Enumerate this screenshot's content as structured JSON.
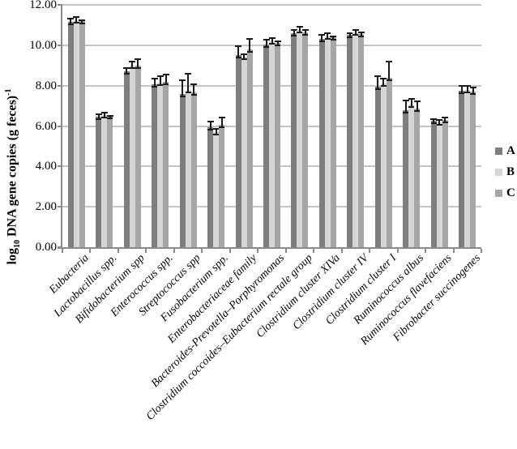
{
  "figure": {
    "background": "#ffffff"
  },
  "chart_data": {
    "type": "bar",
    "title": "",
    "ylabel": {
      "prefix": "log",
      "sub": "10",
      "rest": " DNA gene copies (g feces)",
      "sup": "-1"
    },
    "ylim": [
      0,
      12
    ],
    "grid": "horizontal-only",
    "legend_position": "right-middle",
    "yticks": [
      {
        "value": 0,
        "label": "0.00"
      },
      {
        "value": 2,
        "label": "2.00"
      },
      {
        "value": 4,
        "label": "4.00"
      },
      {
        "value": 6,
        "label": "6.00"
      },
      {
        "value": 8,
        "label": "8.00"
      },
      {
        "value": 10,
        "label": "10.00"
      },
      {
        "value": 12,
        "label": "12.00"
      }
    ],
    "categories": [
      "Eubacteria",
      "Lactobacillus spp.",
      "Bifidobacterium spp",
      "Enterococcus spp.",
      "Streptococcus spp",
      "Fusobacterium spp.",
      "Enterobacteriaceae family",
      "Bacteroides-Prevotella–Porphyromonas",
      "Clostridium coccoides–Eubacterium rectale group",
      "Clostridium cluster XIVa",
      "Clostridium cluster IV",
      "Clostridium cluster I",
      "Ruminococcus albus",
      "Ruminococcus flavefaciens",
      "Fibrobacter succinogenes"
    ],
    "series": [
      {
        "name": "A",
        "color": "#7e7e7e",
        "values": [
          11.15,
          6.45,
          8.7,
          8.05,
          7.6,
          5.95,
          9.5,
          10.05,
          10.6,
          10.3,
          10.5,
          7.95,
          6.8,
          6.25,
          7.75
        ],
        "errors": [
          0.2,
          0.18,
          0.2,
          0.35,
          0.7,
          0.3,
          0.5,
          0.25,
          0.18,
          0.27,
          0.14,
          0.55,
          0.5,
          0.15,
          0.28
        ]
      },
      {
        "name": "B",
        "color": "#d6d6d6",
        "values": [
          11.25,
          6.55,
          9.0,
          8.13,
          7.8,
          5.7,
          9.45,
          10.2,
          10.75,
          10.45,
          10.65,
          8.1,
          7.05,
          6.2,
          7.8
        ],
        "errors": [
          0.2,
          0.15,
          0.25,
          0.37,
          0.83,
          0.2,
          0.13,
          0.18,
          0.22,
          0.2,
          0.15,
          0.27,
          0.32,
          0.16,
          0.23
        ]
      },
      {
        "name": "C",
        "color": "#a6a6a6",
        "values": [
          11.2,
          6.5,
          9.0,
          8.2,
          7.65,
          6.05,
          9.8,
          10.1,
          10.65,
          10.38,
          10.55,
          8.4,
          6.85,
          6.3,
          7.7
        ],
        "errors": [
          0.08,
          0.05,
          0.35,
          0.4,
          0.45,
          0.4,
          0.55,
          0.12,
          0.15,
          0.1,
          0.13,
          0.82,
          0.43,
          0.15,
          0.23
        ]
      }
    ],
    "colors": {
      "gridline": "#c4c4c4",
      "axis": "#8a8a8a",
      "error_bar": "#1a1a1a",
      "text": "#000000"
    }
  }
}
